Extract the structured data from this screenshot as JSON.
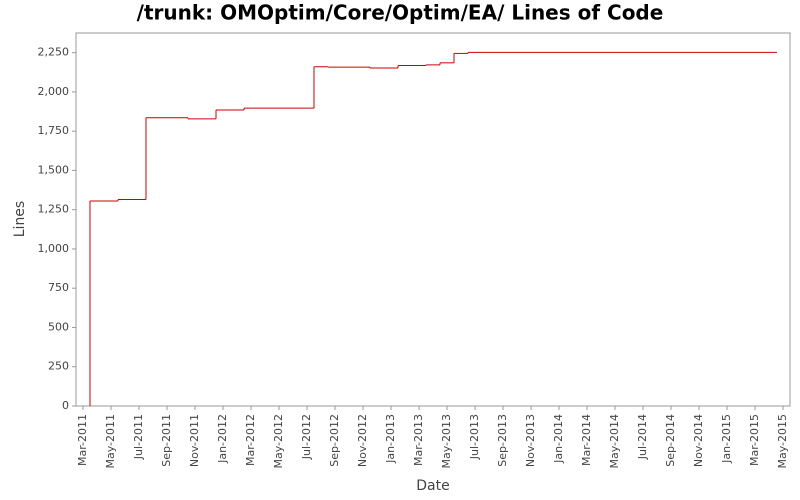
{
  "chart_data": {
    "type": "step",
    "title": "/trunk: OMOptim/Core/Optim/EA/ Lines of Code",
    "x_label": "Date",
    "y_label": "Lines",
    "series": [
      {
        "name": "Lines",
        "color": "#cc0000",
        "x": [
          "2011-03",
          "2011-03",
          "2011-05",
          "2011-07",
          "2011-10",
          "2011-12",
          "2012-02",
          "2012-07",
          "2012-08",
          "2012-11",
          "2013-01",
          "2013-03",
          "2013-04",
          "2013-05",
          "2013-06",
          "2015-04"
        ],
        "values": [
          0,
          1305,
          1315,
          1835,
          1828,
          1885,
          1897,
          2160,
          2158,
          2152,
          2168,
          2172,
          2185,
          2245,
          2252,
          2252
        ]
      }
    ],
    "xlim": [
      "2011-02",
      "2015-05"
    ],
    "xticks": [
      {
        "value": "2011-03",
        "label": "Mar-2011"
      },
      {
        "value": "2011-05",
        "label": "May-2011"
      },
      {
        "value": "2011-07",
        "label": "Jul-2011"
      },
      {
        "value": "2011-09",
        "label": "Sep-2011"
      },
      {
        "value": "2011-11",
        "label": "Nov-2011"
      },
      {
        "value": "2012-01",
        "label": "Jan-2012"
      },
      {
        "value": "2012-03",
        "label": "Mar-2012"
      },
      {
        "value": "2012-05",
        "label": "May-2012"
      },
      {
        "value": "2012-07",
        "label": "Jul-2012"
      },
      {
        "value": "2012-09",
        "label": "Sep-2012"
      },
      {
        "value": "2012-11",
        "label": "Nov-2012"
      },
      {
        "value": "2013-01",
        "label": "Jan-2013"
      },
      {
        "value": "2013-03",
        "label": "Mar-2013"
      },
      {
        "value": "2013-05",
        "label": "May-2013"
      },
      {
        "value": "2013-07",
        "label": "Jul-2013"
      },
      {
        "value": "2013-09",
        "label": "Sep-2013"
      },
      {
        "value": "2013-11",
        "label": "Nov-2013"
      },
      {
        "value": "2014-01",
        "label": "Jan-2014"
      },
      {
        "value": "2014-03",
        "label": "Mar-2014"
      },
      {
        "value": "2014-05",
        "label": "May-2014"
      },
      {
        "value": "2014-07",
        "label": "Jul-2014"
      },
      {
        "value": "2014-09",
        "label": "Sep-2014"
      },
      {
        "value": "2014-11",
        "label": "Nov-2014"
      },
      {
        "value": "2015-01",
        "label": "Jan-2015"
      },
      {
        "value": "2015-03",
        "label": "Mar-2015"
      },
      {
        "value": "2015-05",
        "label": "May-2015"
      }
    ],
    "ylim": [
      0,
      2375
    ],
    "yticks": [
      0,
      250,
      500,
      750,
      {
        "value": 1000,
        "label": "1,000"
      },
      {
        "value": 1250,
        "label": "1,250"
      },
      {
        "value": 1500,
        "label": "1,500"
      },
      {
        "value": 1750,
        "label": "1,750"
      },
      {
        "value": 2000,
        "label": "2,000"
      },
      {
        "value": 2250,
        "label": "2,250"
      }
    ],
    "grid": false
  }
}
